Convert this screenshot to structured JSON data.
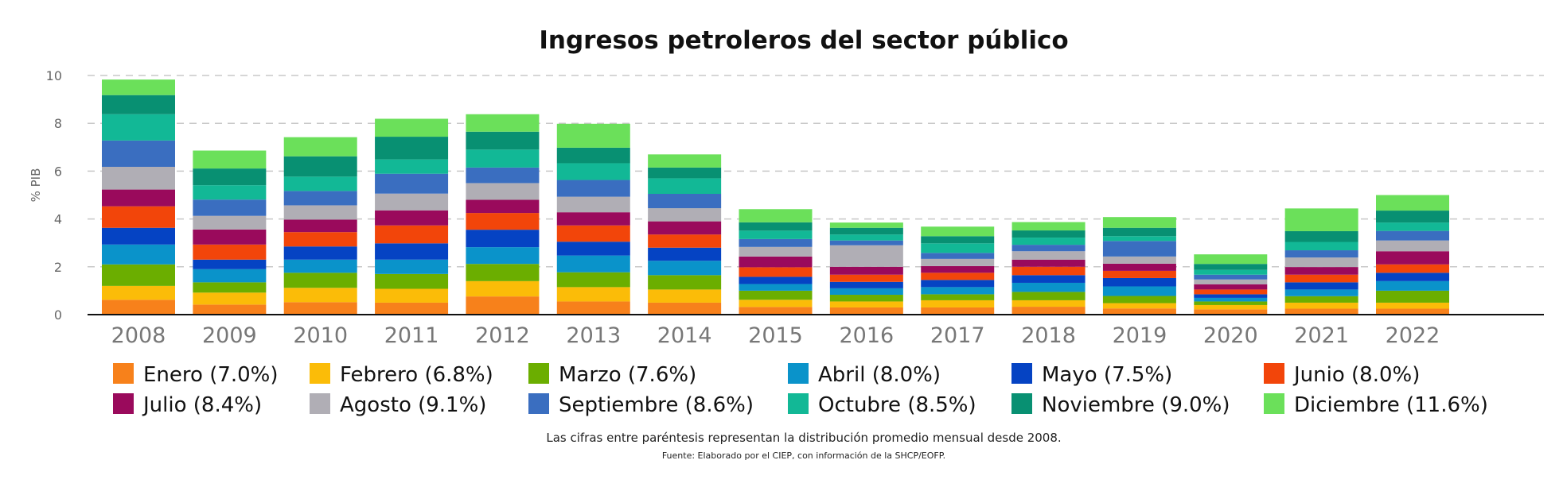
{
  "chart_data": {
    "type": "bar",
    "stacked": true,
    "title": "Ingresos petroleros del sector público",
    "ylabel": "% PIB",
    "xlabel": "",
    "ylim": [
      0,
      10
    ],
    "yticks": [
      0,
      2,
      4,
      6,
      8,
      10
    ],
    "grid": "horizontal dashed",
    "legend_placement": "bottom",
    "categories": [
      "2008",
      "2009",
      "2010",
      "2011",
      "2012",
      "2013",
      "2014",
      "2015",
      "2016",
      "2017",
      "2018",
      "2019",
      "2020",
      "2021",
      "2022"
    ],
    "series": [
      {
        "name": "Enero (7.0%)",
        "color": "#F7811B",
        "values": [
          0.62,
          0.42,
          0.52,
          0.5,
          0.76,
          0.55,
          0.5,
          0.32,
          0.3,
          0.3,
          0.33,
          0.26,
          0.22,
          0.25,
          0.25
        ]
      },
      {
        "name": "Febrero (6.8%)",
        "color": "#FBBC08",
        "values": [
          0.58,
          0.5,
          0.6,
          0.58,
          0.64,
          0.6,
          0.55,
          0.3,
          0.25,
          0.3,
          0.27,
          0.22,
          0.18,
          0.25,
          0.25
        ]
      },
      {
        "name": "Marzo (7.6%)",
        "color": "#6BAE00",
        "values": [
          0.9,
          0.43,
          0.63,
          0.62,
          0.72,
          0.62,
          0.6,
          0.38,
          0.28,
          0.25,
          0.35,
          0.3,
          0.15,
          0.27,
          0.5
        ]
      },
      {
        "name": "Abril (8.0%)",
        "color": "#0A93CA",
        "values": [
          0.83,
          0.55,
          0.55,
          0.6,
          0.7,
          0.7,
          0.6,
          0.28,
          0.27,
          0.3,
          0.38,
          0.4,
          0.15,
          0.28,
          0.4
        ]
      },
      {
        "name": "Mayo (7.5%)",
        "color": "#0543C3",
        "values": [
          0.7,
          0.4,
          0.55,
          0.68,
          0.73,
          0.58,
          0.55,
          0.3,
          0.27,
          0.3,
          0.32,
          0.35,
          0.15,
          0.3,
          0.35
        ]
      },
      {
        "name": "Junio (8.0%)",
        "color": "#F2450A",
        "values": [
          0.9,
          0.63,
          0.6,
          0.75,
          0.7,
          0.68,
          0.55,
          0.4,
          0.3,
          0.3,
          0.35,
          0.3,
          0.2,
          0.32,
          0.35
        ]
      },
      {
        "name": "Julio (8.4%)",
        "color": "#9A0A5C",
        "values": [
          0.7,
          0.63,
          0.52,
          0.63,
          0.55,
          0.55,
          0.55,
          0.45,
          0.33,
          0.28,
          0.3,
          0.3,
          0.22,
          0.32,
          0.55
        ]
      },
      {
        "name": "Agosto (9.1%)",
        "color": "#B0AEB5",
        "values": [
          0.95,
          0.57,
          0.6,
          0.7,
          0.7,
          0.65,
          0.55,
          0.4,
          0.9,
          0.3,
          0.35,
          0.3,
          0.2,
          0.4,
          0.45
        ]
      },
      {
        "name": "Septiembre (8.6%)",
        "color": "#3A6EC0",
        "values": [
          1.1,
          0.68,
          0.6,
          0.83,
          0.65,
          0.7,
          0.6,
          0.33,
          0.2,
          0.25,
          0.27,
          0.65,
          0.2,
          0.3,
          0.4
        ]
      },
      {
        "name": "Octubre (8.5%)",
        "color": "#12B896",
        "values": [
          1.1,
          0.6,
          0.6,
          0.6,
          0.75,
          0.7,
          0.65,
          0.35,
          0.25,
          0.4,
          0.3,
          0.2,
          0.2,
          0.35,
          0.35
        ]
      },
      {
        "name": "Noviembre (9.0%)",
        "color": "#089072",
        "values": [
          0.8,
          0.7,
          0.85,
          0.95,
          0.75,
          0.65,
          0.45,
          0.35,
          0.28,
          0.3,
          0.3,
          0.35,
          0.25,
          0.45,
          0.5
        ]
      },
      {
        "name": "Diciembre (11.6%)",
        "color": "#6BE05A",
        "values": [
          0.65,
          0.75,
          0.8,
          0.75,
          0.73,
          1.0,
          0.55,
          0.55,
          0.22,
          0.4,
          0.35,
          0.45,
          0.4,
          0.95,
          0.65
        ]
      }
    ],
    "notes": [
      "Las cifras entre paréntesis representan la distribución promedio mensual desde 2008.",
      "Fuente: Elaborado por el CIEP, con información de la SHCP/EOFP."
    ]
  }
}
